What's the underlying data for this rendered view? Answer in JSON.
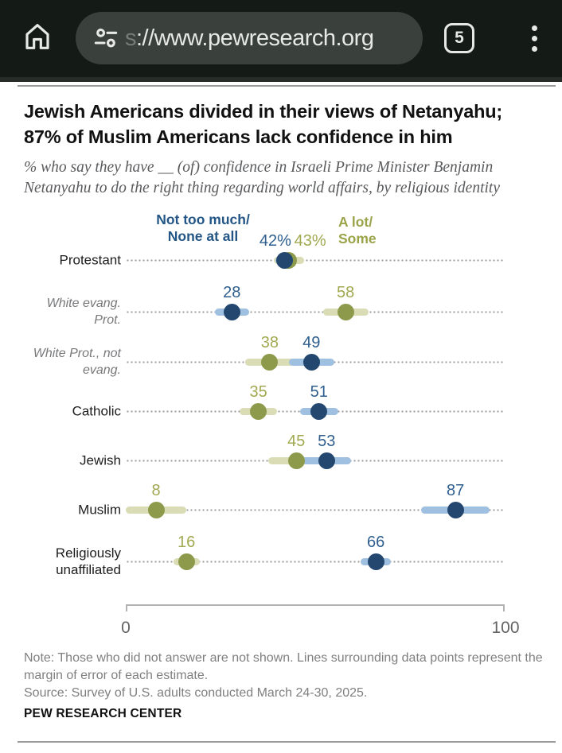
{
  "browser": {
    "url_faded": "s",
    "url": "://www.pewresearch.org",
    "tab_count": "5"
  },
  "chart_data": {
    "type": "dot-range",
    "title_lines": [
      "Jewish Americans divided in their views of Netanyahu;",
      "87% of Muslim Americans lack confidence in him"
    ],
    "subtitle_lines": [
      "% who say they have __ (of) confidence in Israeli Prime Minister Benjamin",
      "Netanyahu to do the right thing regarding world affairs, by religious identity"
    ],
    "xlim": [
      0,
      100
    ],
    "axis_labels": [
      "0",
      "100"
    ],
    "legend_position": "top",
    "grid": "dotted-row-leaders",
    "series": {
      "not_much": {
        "name_lines": [
          "Not too much/",
          "None at all"
        ],
        "legend_color": "#235686",
        "dot_color": "#24476f",
        "bar_color": "#9fc0e0",
        "text_color": "#2f5f8e"
      },
      "a_lot": {
        "name_lines": [
          "A lot/",
          "Some"
        ],
        "legend_color": "#9aa348",
        "dot_color": "#8e9a4b",
        "bar_color": "#d9dcb4",
        "text_color": "#a1a951"
      }
    },
    "rows": [
      {
        "category_lines": [
          "Protestant"
        ],
        "sub": false,
        "points": [
          {
            "series": "a_lot",
            "value": 43,
            "moe": 4,
            "label": "43%",
            "label_dx": 27
          },
          {
            "series": "not_much",
            "value": 42,
            "moe": 2.5,
            "label": "42%",
            "label_dx": -12
          }
        ]
      },
      {
        "category_lines": [
          "White evang.",
          "Prot."
        ],
        "sub": true,
        "points": [
          {
            "series": "a_lot",
            "value": 58,
            "moe": 6,
            "label": "58",
            "label_dx": 0
          },
          {
            "series": "not_much",
            "value": 28,
            "moe": 4.5,
            "label": "28",
            "label_dx": 0
          }
        ]
      },
      {
        "category_lines": [
          "White Prot., not",
          "evang."
        ],
        "sub": true,
        "points": [
          {
            "series": "a_lot",
            "value": 38,
            "moe": 6.5,
            "label": "38",
            "label_dx": 0
          },
          {
            "series": "not_much",
            "value": 49,
            "moe": 6,
            "label": "49",
            "label_dx": 0
          }
        ]
      },
      {
        "category_lines": [
          "Catholic"
        ],
        "sub": false,
        "points": [
          {
            "series": "a_lot",
            "value": 35,
            "moe": 5,
            "label": "35",
            "label_dx": 0
          },
          {
            "series": "not_much",
            "value": 51,
            "moe": 5,
            "label": "51",
            "label_dx": 0
          }
        ]
      },
      {
        "category_lines": [
          "Jewish"
        ],
        "sub": false,
        "points": [
          {
            "series": "a_lot",
            "value": 45,
            "moe": 7.5,
            "label": "45",
            "label_dx": 0
          },
          {
            "series": "not_much",
            "value": 53,
            "moe": 6.5,
            "label": "53",
            "label_dx": 0
          }
        ]
      },
      {
        "category_lines": [
          "Muslim"
        ],
        "sub": false,
        "points": [
          {
            "series": "a_lot",
            "value": 8,
            "moe": 8,
            "label": "8",
            "label_dx": 0
          },
          {
            "series": "not_much",
            "value": 87,
            "moe": 9,
            "label": "87",
            "label_dx": 0
          }
        ]
      },
      {
        "category_lines": [
          "Religiously",
          "unaffiliated"
        ],
        "sub": false,
        "points": [
          {
            "series": "a_lot",
            "value": 16,
            "moe": 3.5,
            "label": "16",
            "label_dx": 0
          },
          {
            "series": "not_much",
            "value": 66,
            "moe": 4,
            "label": "66",
            "label_dx": 0
          }
        ]
      }
    ],
    "note_lines": [
      "Note: Those who did not answer are not shown. Lines surrounding data points represent the",
      "margin of error of each estimate."
    ],
    "source": "Source: Survey of U.S. adults conducted March 24-30, 2025.",
    "brand": "PEW RESEARCH CENTER"
  }
}
